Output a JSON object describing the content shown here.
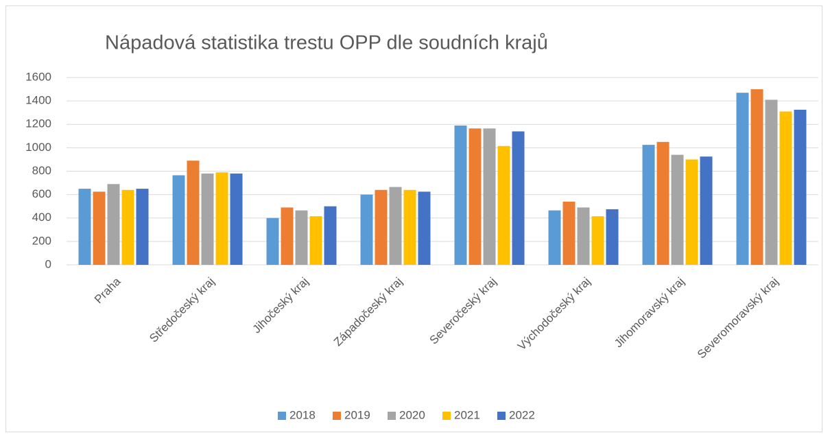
{
  "chart_data": {
    "type": "bar",
    "title": "Nápadová statistika trestu OPP dle soudních krajů",
    "categories": [
      "Praha",
      "Středočeský kraj",
      "Jihočeský kraj",
      "Západočeský kraj",
      "Severočeský kraj",
      "Východočeský kraj",
      "Jihomoravský kraj",
      "Severomoravský kraj"
    ],
    "series": [
      {
        "name": "2018",
        "color": "#5b9bd5",
        "values": [
          650,
          765,
          400,
          600,
          1190,
          465,
          1025,
          1470
        ]
      },
      {
        "name": "2019",
        "color": "#ed7d31",
        "values": [
          625,
          890,
          490,
          640,
          1165,
          540,
          1050,
          1500
        ]
      },
      {
        "name": "2020",
        "color": "#a5a5a5",
        "values": [
          690,
          780,
          465,
          665,
          1165,
          490,
          940,
          1410
        ]
      },
      {
        "name": "2021",
        "color": "#ffc000",
        "values": [
          640,
          790,
          415,
          640,
          1015,
          415,
          900,
          1310
        ]
      },
      {
        "name": "2022",
        "color": "#4472c4",
        "values": [
          650,
          780,
          500,
          625,
          1140,
          475,
          925,
          1325
        ]
      }
    ],
    "ylim": [
      0,
      1600
    ],
    "yticks": [
      0,
      200,
      400,
      600,
      800,
      1000,
      1200,
      1400,
      1600
    ],
    "grid": true,
    "legend": "bottom"
  }
}
